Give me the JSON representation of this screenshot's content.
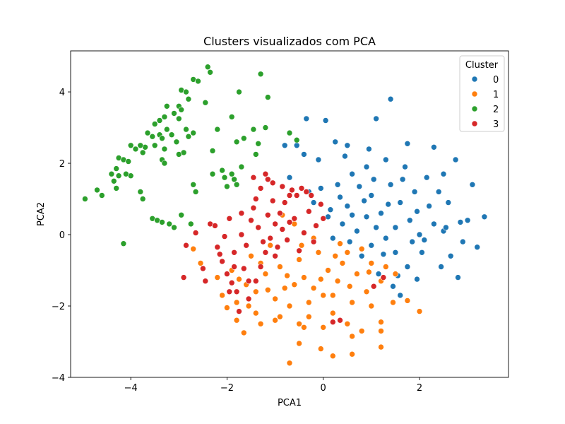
{
  "chart_data": {
    "type": "scatter",
    "title": "Clusters visualizados com PCA",
    "xlabel": "PCA1",
    "ylabel": "PCA2",
    "xlim": [
      -5.25,
      3.85
    ],
    "ylim": [
      -4.0,
      5.15
    ],
    "xticks": [
      -4,
      -2,
      0,
      2
    ],
    "yticks": [
      -4,
      -2,
      0,
      2,
      4
    ],
    "grid": false,
    "legend": {
      "title": "Cluster",
      "placement": "top-right"
    },
    "series": [
      {
        "name": "0",
        "color": "#1f77b4",
        "points": [
          [
            1.4,
            3.8
          ],
          [
            1.1,
            3.25
          ],
          [
            -0.35,
            3.25
          ],
          [
            0.05,
            3.2
          ],
          [
            -0.8,
            2.5
          ],
          [
            -0.55,
            2.5
          ],
          [
            -0.4,
            2.25
          ],
          [
            0.25,
            2.6
          ],
          [
            0.5,
            2.5
          ],
          [
            2.3,
            2.45
          ],
          [
            2.75,
            2.1
          ],
          [
            2.15,
            1.6
          ],
          [
            2.5,
            1.7
          ],
          [
            3.1,
            1.4
          ],
          [
            3.35,
            0.5
          ],
          [
            2.85,
            0.35
          ],
          [
            3.0,
            0.4
          ],
          [
            3.2,
            -0.35
          ],
          [
            2.8,
            -1.2
          ],
          [
            2.5,
            0.1
          ],
          [
            2.65,
            -0.6
          ],
          [
            2.45,
            -0.9
          ],
          [
            1.6,
            -1.7
          ],
          [
            1.45,
            -1.45
          ],
          [
            1.15,
            -1.1
          ],
          [
            0.2,
            -0.1
          ],
          [
            0.3,
            1.4
          ],
          [
            -0.05,
            1.3
          ],
          [
            -0.3,
            1.2
          ],
          [
            0.6,
            1.7
          ],
          [
            0.9,
            1.9
          ],
          [
            1.3,
            2.1
          ],
          [
            1.7,
            1.9
          ],
          [
            1.9,
            1.2
          ],
          [
            2.2,
            0.8
          ],
          [
            2.0,
            0.0
          ],
          [
            1.5,
            -0.5
          ],
          [
            1.0,
            -0.3
          ],
          [
            0.7,
            0.1
          ],
          [
            0.5,
            0.8
          ],
          [
            1.2,
            0.6
          ],
          [
            1.6,
            0.9
          ],
          [
            1.8,
            0.4
          ],
          [
            1.3,
            -0.1
          ],
          [
            0.9,
            0.5
          ],
          [
            0.4,
            0.3
          ],
          [
            1.0,
            1.1
          ],
          [
            1.4,
            1.4
          ],
          [
            0.8,
            -0.6
          ],
          [
            1.75,
            -0.9
          ],
          [
            2.05,
            -0.5
          ],
          [
            2.3,
            0.3
          ],
          [
            1.1,
            0.2
          ],
          [
            0.6,
            0.55
          ],
          [
            1.5,
            0.2
          ],
          [
            0.85,
            0.95
          ],
          [
            1.95,
            0.65
          ],
          [
            0.35,
            1.05
          ],
          [
            1.25,
            -0.55
          ],
          [
            2.4,
            1.2
          ],
          [
            1.65,
            1.55
          ],
          [
            0.15,
            0.7
          ],
          [
            0.55,
            -0.2
          ],
          [
            1.85,
            -0.2
          ],
          [
            1.05,
            1.55
          ],
          [
            2.6,
            0.9
          ],
          [
            1.35,
            0.85
          ],
          [
            0.75,
            1.35
          ],
          [
            2.1,
            -0.15
          ],
          [
            1.55,
            -1.15
          ],
          [
            -0.7,
            1.6
          ],
          [
            -0.2,
            0.9
          ],
          [
            0.1,
            0.5
          ],
          [
            -0.1,
            2.1
          ],
          [
            0.95,
            2.4
          ],
          [
            1.75,
            2.55
          ],
          [
            2.55,
            0.2
          ],
          [
            2.9,
            -0.2
          ],
          [
            0.45,
            2.2
          ],
          [
            1.95,
            -1.25
          ]
        ]
      },
      {
        "name": "1",
        "color": "#ff7f0e",
        "points": [
          [
            -0.7,
            -3.6
          ],
          [
            -0.5,
            -3.05
          ],
          [
            -0.05,
            -3.2
          ],
          [
            0.6,
            -3.35
          ],
          [
            0.2,
            -3.4
          ],
          [
            0.6,
            -2.85
          ],
          [
            1.2,
            -3.15
          ],
          [
            -0.5,
            -2.5
          ],
          [
            -1.65,
            -2.75
          ],
          [
            -1.3,
            -2.5
          ],
          [
            -1.8,
            -2.4
          ],
          [
            -2.0,
            -2.05
          ],
          [
            -2.1,
            -1.7
          ],
          [
            -2.7,
            -0.4
          ],
          [
            -2.55,
            -0.8
          ],
          [
            -2.2,
            -1.2
          ],
          [
            -1.8,
            -1.9
          ],
          [
            -1.4,
            -2.2
          ],
          [
            -0.9,
            -2.3
          ],
          [
            -0.3,
            -2.3
          ],
          [
            0.2,
            -2.2
          ],
          [
            0.5,
            -2.5
          ],
          [
            0.8,
            -2.7
          ],
          [
            1.2,
            -2.7
          ],
          [
            1.2,
            -2.45
          ],
          [
            1.45,
            -1.9
          ],
          [
            1.75,
            -1.85
          ],
          [
            2.0,
            -2.15
          ],
          [
            0.35,
            -0.25
          ],
          [
            0.5,
            -0.5
          ],
          [
            -0.2,
            -0.1
          ],
          [
            -0.6,
            0.3
          ],
          [
            -0.85,
            0.55
          ],
          [
            0.1,
            -1.0
          ],
          [
            -0.4,
            -1.2
          ],
          [
            -0.8,
            -1.5
          ],
          [
            -1.2,
            -1.1
          ],
          [
            -1.5,
            -0.6
          ],
          [
            -1.1,
            -0.3
          ],
          [
            -0.5,
            -0.7
          ],
          [
            0.3,
            -1.3
          ],
          [
            0.7,
            -1.1
          ],
          [
            1.0,
            -0.8
          ],
          [
            0.9,
            -1.6
          ],
          [
            0.6,
            -1.9
          ],
          [
            0.0,
            -1.7
          ],
          [
            -0.3,
            -1.9
          ],
          [
            -0.7,
            -2.0
          ],
          [
            -1.0,
            -1.8
          ],
          [
            -1.6,
            -1.4
          ],
          [
            -1.9,
            -1.0
          ],
          [
            -1.3,
            -0.8
          ],
          [
            -0.9,
            -0.9
          ],
          [
            -0.1,
            -0.5
          ],
          [
            0.4,
            -0.8
          ],
          [
            0.8,
            -0.4
          ],
          [
            1.2,
            -1.3
          ],
          [
            1.5,
            -1.1
          ],
          [
            -0.6,
            -1.4
          ],
          [
            -0.2,
            -1.5
          ],
          [
            0.2,
            -1.7
          ],
          [
            -1.0,
            -2.4
          ],
          [
            -0.4,
            -2.6
          ],
          [
            0.0,
            -2.6
          ],
          [
            1.0,
            -2.0
          ],
          [
            -1.4,
            -1.6
          ],
          [
            -1.75,
            -1.25
          ],
          [
            -0.75,
            -1.15
          ],
          [
            0.55,
            -1.45
          ],
          [
            1.3,
            -0.9
          ],
          [
            -1.15,
            -1.55
          ],
          [
            -0.05,
            -1.25
          ],
          [
            0.95,
            -1.05
          ],
          [
            -0.45,
            -0.3
          ],
          [
            0.25,
            -0.6
          ],
          [
            -1.55,
            -2.0
          ]
        ]
      },
      {
        "name": "2",
        "color": "#2ca02c",
        "points": [
          [
            -2.4,
            4.7
          ],
          [
            -2.35,
            4.55
          ],
          [
            -1.3,
            4.5
          ],
          [
            -2.7,
            4.35
          ],
          [
            -2.6,
            4.3
          ],
          [
            -1.75,
            4.0
          ],
          [
            -1.15,
            3.85
          ],
          [
            -2.95,
            4.05
          ],
          [
            -2.85,
            4.0
          ],
          [
            -2.8,
            3.8
          ],
          [
            -3.0,
            3.6
          ],
          [
            -2.45,
            3.7
          ],
          [
            -3.25,
            3.6
          ],
          [
            -3.1,
            3.4
          ],
          [
            -2.95,
            3.5
          ],
          [
            -3.3,
            3.3
          ],
          [
            -3.0,
            3.25
          ],
          [
            -1.9,
            3.3
          ],
          [
            -3.4,
            3.2
          ],
          [
            -3.5,
            3.1
          ],
          [
            -3.25,
            2.95
          ],
          [
            -3.15,
            2.8
          ],
          [
            -2.85,
            2.95
          ],
          [
            -2.8,
            2.75
          ],
          [
            -2.7,
            2.85
          ],
          [
            -3.4,
            2.8
          ],
          [
            -3.35,
            2.7
          ],
          [
            -3.5,
            2.5
          ],
          [
            -3.65,
            2.85
          ],
          [
            -3.55,
            2.75
          ],
          [
            -3.3,
            2.4
          ],
          [
            -3.05,
            2.6
          ],
          [
            -3.0,
            2.25
          ],
          [
            -2.9,
            2.3
          ],
          [
            -3.7,
            2.45
          ],
          [
            -3.8,
            2.5
          ],
          [
            -3.9,
            2.4
          ],
          [
            -4.0,
            2.5
          ],
          [
            -3.75,
            2.3
          ],
          [
            -3.35,
            2.1
          ],
          [
            -3.3,
            2.0
          ],
          [
            -4.25,
            2.15
          ],
          [
            -4.15,
            2.1
          ],
          [
            -4.05,
            2.05
          ],
          [
            -4.3,
            1.85
          ],
          [
            -4.1,
            1.7
          ],
          [
            -4.4,
            1.7
          ],
          [
            -4.25,
            1.65
          ],
          [
            -4.35,
            1.5
          ],
          [
            -4.0,
            1.65
          ],
          [
            -4.3,
            1.3
          ],
          [
            -4.7,
            1.25
          ],
          [
            -4.6,
            1.1
          ],
          [
            -4.95,
            1.0
          ],
          [
            -3.8,
            1.2
          ],
          [
            -3.75,
            1.0
          ],
          [
            -3.55,
            0.45
          ],
          [
            -3.45,
            0.4
          ],
          [
            -3.35,
            0.35
          ],
          [
            -3.2,
            0.3
          ],
          [
            -3.1,
            0.2
          ],
          [
            -2.95,
            0.55
          ],
          [
            -2.75,
            0.3
          ],
          [
            -2.65,
            1.2
          ],
          [
            -2.7,
            1.4
          ],
          [
            -2.2,
            2.95
          ],
          [
            -2.3,
            2.35
          ],
          [
            -2.3,
            1.7
          ],
          [
            -2.1,
            1.8
          ],
          [
            -2.05,
            1.6
          ],
          [
            -1.9,
            1.7
          ],
          [
            -1.85,
            1.55
          ],
          [
            -2.0,
            1.35
          ],
          [
            -1.8,
            1.4
          ],
          [
            -1.7,
            1.9
          ],
          [
            -1.8,
            2.6
          ],
          [
            -1.65,
            2.7
          ],
          [
            -1.45,
            2.95
          ],
          [
            -1.35,
            2.55
          ],
          [
            -1.4,
            2.25
          ],
          [
            -0.7,
            2.85
          ],
          [
            -0.55,
            2.65
          ],
          [
            -1.2,
            3.0
          ],
          [
            -4.15,
            -0.25
          ]
        ]
      },
      {
        "name": "3",
        "color": "#d62728",
        "points": [
          [
            -2.9,
            -1.2
          ],
          [
            -2.85,
            -0.3
          ],
          [
            -2.65,
            0.05
          ],
          [
            -2.5,
            -0.95
          ],
          [
            -2.45,
            -1.3
          ],
          [
            -2.35,
            0.3
          ],
          [
            -2.25,
            0.25
          ],
          [
            -2.2,
            -0.35
          ],
          [
            -2.1,
            -0.75
          ],
          [
            -2.0,
            -1.1
          ],
          [
            -1.9,
            -1.35
          ],
          [
            -1.8,
            -1.6
          ],
          [
            -1.75,
            -2.15
          ],
          [
            -1.55,
            -1.8
          ],
          [
            -1.4,
            -1.3
          ],
          [
            -1.3,
            -0.9
          ],
          [
            -1.2,
            -0.5
          ],
          [
            -1.1,
            -0.1
          ],
          [
            -1.0,
            0.3
          ],
          [
            -0.9,
            0.6
          ],
          [
            -0.8,
            0.9
          ],
          [
            -0.7,
            1.1
          ],
          [
            -0.65,
            1.25
          ],
          [
            -0.55,
            1.1
          ],
          [
            -0.45,
            1.3
          ],
          [
            -0.35,
            1.2
          ],
          [
            -0.25,
            1.1
          ],
          [
            -1.3,
            1.3
          ],
          [
            -1.45,
            1.6
          ],
          [
            -1.2,
            1.7
          ],
          [
            -1.15,
            1.55
          ],
          [
            -1.05,
            1.45
          ],
          [
            -2.05,
            -0.05
          ],
          [
            -1.95,
            0.45
          ],
          [
            -1.85,
            -0.5
          ],
          [
            -1.65,
            -0.95
          ],
          [
            -1.7,
            0.0
          ],
          [
            -1.5,
            0.4
          ],
          [
            -1.6,
            -0.3
          ],
          [
            -1.45,
            0.75
          ],
          [
            -1.35,
            0.2
          ],
          [
            -1.25,
            -0.2
          ],
          [
            -1.15,
            0.55
          ],
          [
            -0.95,
            -0.35
          ],
          [
            -0.85,
            0.15
          ],
          [
            -0.75,
            -0.15
          ],
          [
            -0.6,
            0.45
          ],
          [
            -0.4,
            0.05
          ],
          [
            -0.3,
            0.65
          ],
          [
            -0.15,
            0.25
          ],
          [
            -0.05,
            0.85
          ],
          [
            0.0,
            0.45
          ],
          [
            -1.55,
            -1.3
          ],
          [
            -1.85,
            -0.9
          ],
          [
            -2.15,
            -0.55
          ],
          [
            -1.95,
            -1.6
          ],
          [
            -0.5,
            -0.45
          ],
          [
            -0.2,
            -0.2
          ],
          [
            0.2,
            -2.45
          ],
          [
            0.35,
            -2.4
          ],
          [
            1.25,
            -1.2
          ],
          [
            1.05,
            -1.45
          ],
          [
            -1.05,
            0.95
          ],
          [
            -0.7,
            0.35
          ],
          [
            -1.4,
            1.0
          ],
          [
            -1.7,
            0.6
          ],
          [
            -1.0,
            -0.6
          ],
          [
            -0.85,
            1.35
          ]
        ]
      }
    ]
  }
}
